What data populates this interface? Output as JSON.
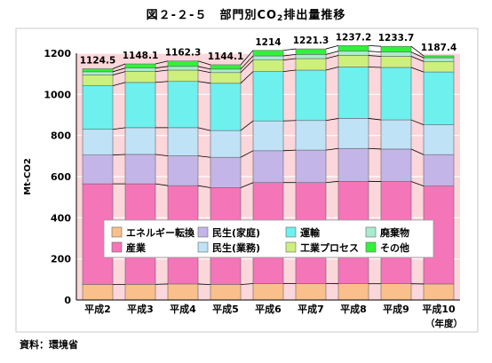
{
  "chart_data": {
    "type": "bar",
    "stacked": true,
    "title_main": "図２-２-５　部門別CO",
    "title_sub": "2",
    "title_tail": "排出量推移",
    "ylabel": "Mt-CO2",
    "xunit": "（年度）",
    "ylim": [
      0,
      1200
    ],
    "yticks": [
      0,
      200,
      400,
      600,
      800,
      1000,
      1200
    ],
    "categories": [
      "平成2",
      "平成3",
      "平成4",
      "平成5",
      "平成6",
      "平成7",
      "平成8",
      "平成9",
      "平成10"
    ],
    "totals": [
      "1124.5",
      "1148.1",
      "1162.3",
      "1144.1",
      "1214",
      "1221.3",
      "1237.2",
      "1233.7",
      "1187.4"
    ],
    "series": [
      {
        "name": "エネルギー転換",
        "color": "#f9c08c",
        "values": [
          75,
          76,
          78,
          75,
          80,
          80,
          79,
          79,
          78
        ]
      },
      {
        "name": "産業",
        "color": "#f575b9",
        "values": [
          490,
          489,
          478,
          471,
          491,
          491,
          498,
          497,
          476
        ]
      },
      {
        "name": "民生(家庭)",
        "color": "#c4b5e8",
        "values": [
          140,
          143,
          145,
          148,
          155,
          158,
          160,
          158,
          153
        ]
      },
      {
        "name": "民生(業務)",
        "color": "#bfe2f6",
        "values": [
          125,
          130,
          137,
          130,
          145,
          144,
          146,
          142,
          145
        ]
      },
      {
        "name": "運輸",
        "color": "#6ef0ef",
        "values": [
          212,
          220,
          225,
          230,
          240,
          245,
          250,
          255,
          257
        ]
      },
      {
        "name": "工業プロセス",
        "color": "#cdf07d",
        "values": [
          52,
          53,
          55,
          52,
          56,
          56,
          56,
          54,
          51
        ]
      },
      {
        "name": "廃棄物",
        "color": "#a8eccd",
        "values": [
          16,
          17,
          18,
          17,
          20,
          20,
          21,
          21,
          18
        ]
      },
      {
        "name": "その他",
        "color": "#33f03a",
        "values": [
          14.5,
          20.1,
          26.3,
          21.1,
          27,
          27.3,
          27.2,
          27.7,
          9.4
        ]
      }
    ],
    "legend_position": "inside-center",
    "legend_order": [
      "エネルギー転換",
      "民生(家庭)",
      "運輸",
      "廃棄物",
      "産業",
      "民生(業務)",
      "工業プロセス",
      "その他"
    ]
  },
  "source": "資料：環境省",
  "colors": {
    "plot_bg": "#fbd6da",
    "gridline": "#ffffff"
  }
}
